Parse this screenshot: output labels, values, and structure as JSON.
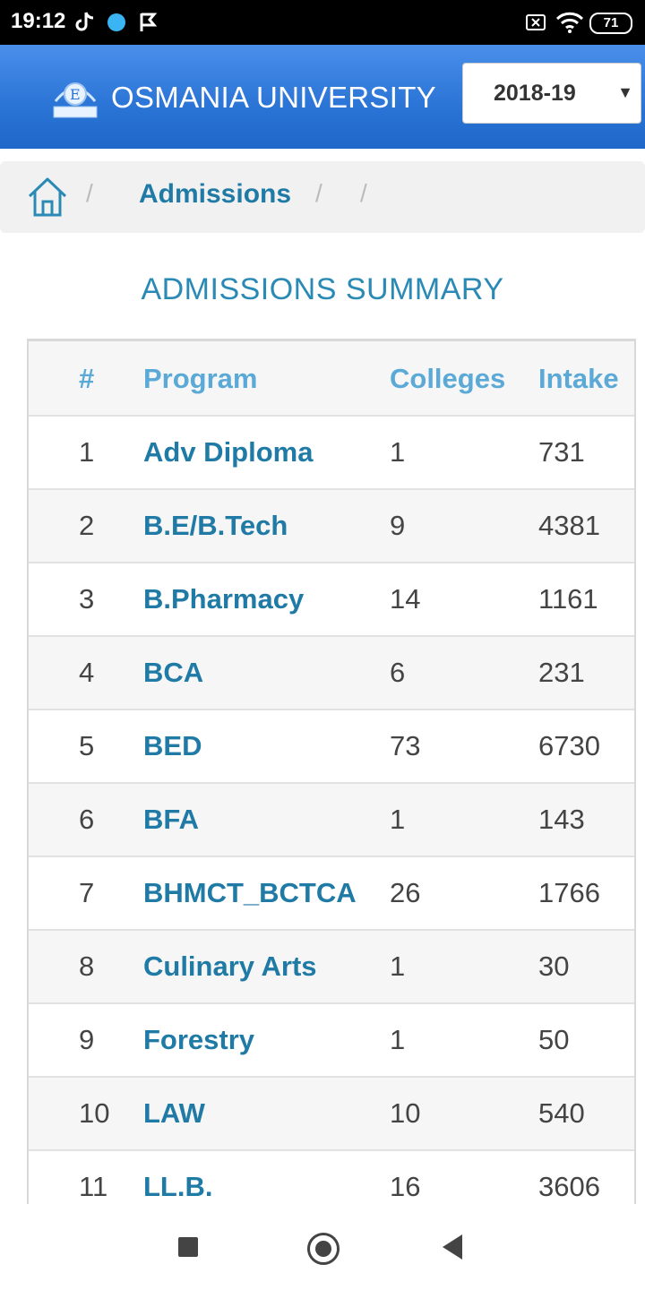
{
  "status_bar": {
    "time": "19:12",
    "battery": "71"
  },
  "header": {
    "title": "OSMANIA UNIVERSITY",
    "year": "2018-19"
  },
  "breadcrumb": {
    "current": "Admissions"
  },
  "summary": {
    "title": "ADMISSIONS SUMMARY",
    "columns": [
      "#",
      "Program",
      "Colleges",
      "Intake"
    ],
    "rows": [
      {
        "num": "1",
        "program": "Adv Diploma",
        "colleges": "1",
        "intake": "731"
      },
      {
        "num": "2",
        "program": "B.E/B.Tech",
        "colleges": "9",
        "intake": "4381"
      },
      {
        "num": "3",
        "program": "B.Pharmacy",
        "colleges": "14",
        "intake": "1161"
      },
      {
        "num": "4",
        "program": "BCA",
        "colleges": "6",
        "intake": "231"
      },
      {
        "num": "5",
        "program": "BED",
        "colleges": "73",
        "intake": "6730"
      },
      {
        "num": "6",
        "program": "BFA",
        "colleges": "1",
        "intake": "143"
      },
      {
        "num": "7",
        "program": "BHMCT_BCTCA",
        "colleges": "26",
        "intake": "1766"
      },
      {
        "num": "8",
        "program": "Culinary Arts",
        "colleges": "1",
        "intake": "30"
      },
      {
        "num": "9",
        "program": "Forestry",
        "colleges": "1",
        "intake": "50"
      },
      {
        "num": "10",
        "program": "LAW",
        "colleges": "10",
        "intake": "540"
      },
      {
        "num": "11",
        "program": "LL.B.",
        "colleges": "16",
        "intake": "3606"
      }
    ]
  },
  "colors": {
    "header": "#2a74d6",
    "link": "#1f7aa6",
    "heading": "#5aa9d6"
  }
}
